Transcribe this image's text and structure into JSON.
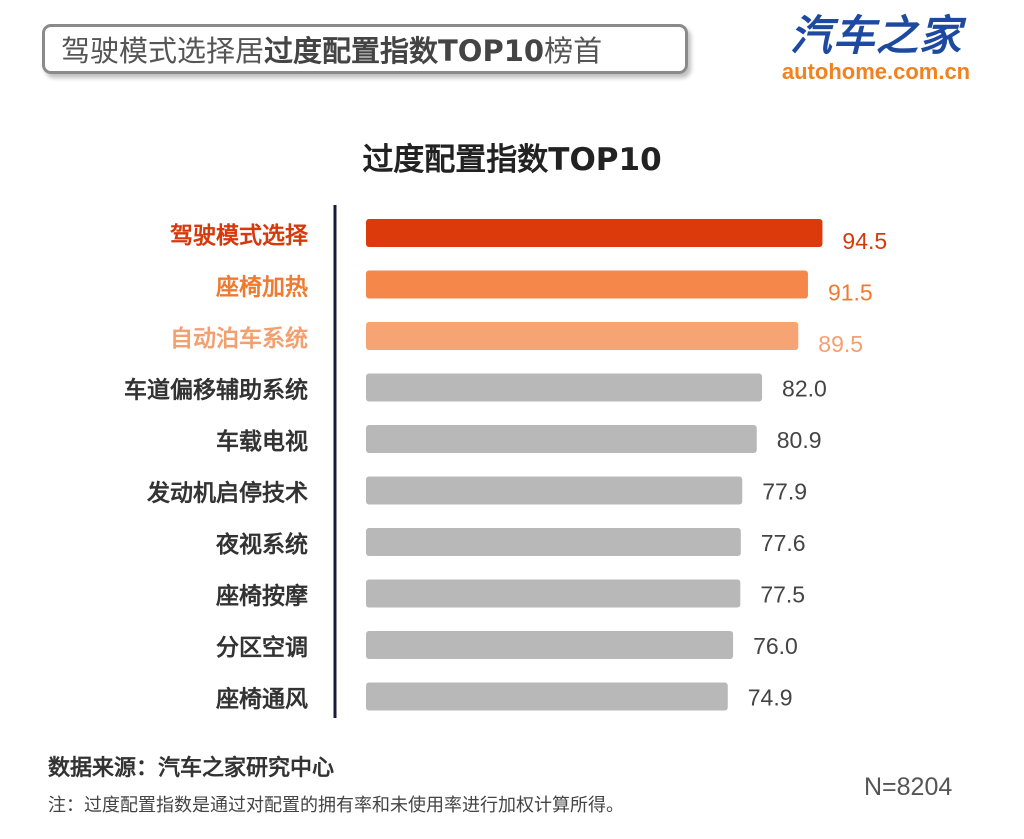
{
  "header": {
    "prefix": "驾驶模式选择居",
    "highlight": "过度配置指数TOP10",
    "suffix": "榜首"
  },
  "logo": {
    "name": "汽车之家",
    "url": "autohome.com.cn"
  },
  "chart_data": {
    "type": "bar",
    "orientation": "horizontal",
    "title": "过度配置指数TOP10",
    "categories": [
      "驾驶模式选择",
      "座椅加热",
      "自动泊车系统",
      "车道偏移辅助系统",
      "车载电视",
      "发动机启停技术",
      "夜视系统",
      "座椅按摩",
      "分区空调",
      "座椅通风"
    ],
    "values": [
      94.5,
      91.5,
      89.5,
      82.0,
      80.9,
      77.9,
      77.6,
      77.5,
      76.0,
      74.9
    ],
    "value_labels": [
      "94.5",
      "91.5",
      "89.5",
      "82.0",
      "80.9",
      "77.9",
      "77.6",
      "77.5",
      "76.0",
      "74.9"
    ],
    "colors": [
      "#dc3a0a",
      "#f5874a",
      "#f6a474",
      "#b8b8b8",
      "#b8b8b8",
      "#b8b8b8",
      "#b8b8b8",
      "#b8b8b8",
      "#b8b8b8",
      "#b8b8b8"
    ],
    "label_colors": [
      "#d63a0c",
      "#f07a30",
      "#f3a070",
      "#333333",
      "#333333",
      "#333333",
      "#333333",
      "#333333",
      "#333333",
      "#333333"
    ],
    "xlim": [
      0,
      100
    ],
    "grid": false,
    "legend": "none"
  },
  "footer": {
    "source": "数据来源：汽车之家研究中心",
    "note": "注：过度配置指数是通过对配置的拥有率和未使用率进行加权计算所得。",
    "n": "N=8204"
  }
}
